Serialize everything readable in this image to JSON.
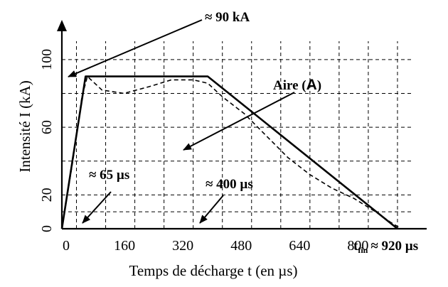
{
  "chart_data": {
    "type": "line",
    "xlabel": "Temps de décharge t (en µs)",
    "ylabel": "Intensité I (kA)",
    "xlim": [
      0,
      1000
    ],
    "ylim": [
      0,
      110
    ],
    "x_ticks": [
      "0",
      "160",
      "320",
      "480",
      "640",
      "800"
    ],
    "y_ticks": [
      "0",
      "20",
      "60",
      "100"
    ],
    "grid": "dashed",
    "series": [
      {
        "style": "solid",
        "x": [
          0,
          65,
          400,
          920
        ],
        "y": [
          0,
          90,
          90,
          0
        ]
      },
      {
        "style": "dashed",
        "x": [
          0,
          30,
          55,
          70,
          110,
          170,
          240,
          300,
          360,
          400,
          440,
          500,
          560,
          620,
          680,
          740,
          800,
          860,
          900,
          930
        ],
        "y": [
          0,
          40,
          78,
          90,
          82,
          80,
          84,
          88,
          88,
          86,
          78,
          68,
          55,
          42,
          32,
          24,
          18,
          10,
          4,
          0
        ]
      }
    ],
    "annotations": {
      "peak": "≈ 90 kA",
      "area_prefix": "Aire (",
      "area_letter": "A",
      "area_suffix": ")",
      "rise_time": "≈ 65 µs",
      "plateau_end": "≈ 400 µs",
      "end_t": "t",
      "end_sub": "fin",
      "end_value": "≈ 920 µs"
    }
  }
}
